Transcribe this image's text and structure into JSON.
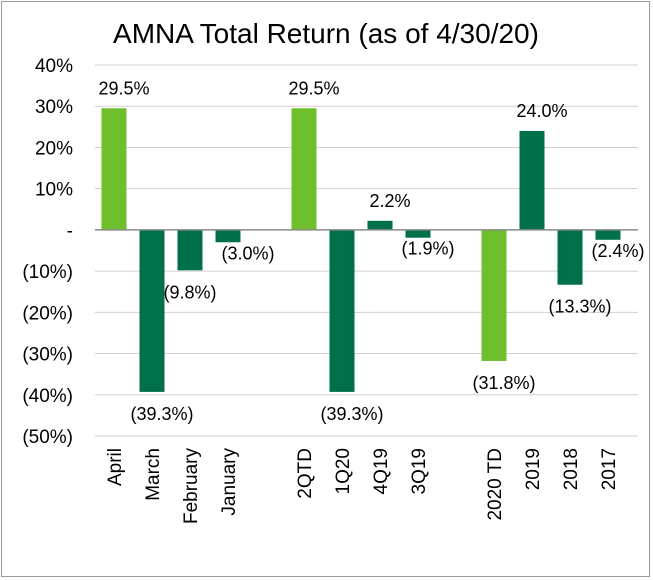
{
  "chart_data": {
    "type": "bar",
    "title": "AMNA Total Return (as of 4/30/20)",
    "xlabel": "",
    "ylabel": "",
    "ylim": [
      -50,
      40
    ],
    "yticks": [
      40,
      30,
      20,
      10,
      0,
      -10,
      -20,
      -30,
      -40,
      -50
    ],
    "ytick_labels": [
      "40%",
      "30%",
      "20%",
      "10%",
      "-",
      "(10%)",
      "(20%)",
      "(30%)",
      "(40%)",
      "(50%)"
    ],
    "grid": true,
    "legend": "none",
    "colors": {
      "light": "#6fbe2c",
      "dark": "#00704a"
    },
    "categories": [
      "April",
      "March",
      "February",
      "January",
      "2QTD",
      "1Q20",
      "4Q19",
      "3Q19",
      "2020 TD",
      "2019",
      "2018",
      "2017"
    ],
    "values": [
      29.5,
      -39.3,
      -9.8,
      -3.0,
      29.5,
      -39.3,
      2.2,
      -1.9,
      -31.8,
      24.0,
      -13.3,
      -2.4
    ],
    "data_labels": [
      "29.5%",
      "(39.3%)",
      "(9.8%)",
      "(3.0%)",
      "29.5%",
      "(39.3%)",
      "2.2%",
      "(1.9%)",
      "(31.8%)",
      "24.0%",
      "(13.3%)",
      "(2.4%)"
    ],
    "bar_colors": [
      "light",
      "dark",
      "dark",
      "dark",
      "light",
      "dark",
      "dark",
      "dark",
      "light",
      "dark",
      "dark",
      "dark"
    ]
  }
}
